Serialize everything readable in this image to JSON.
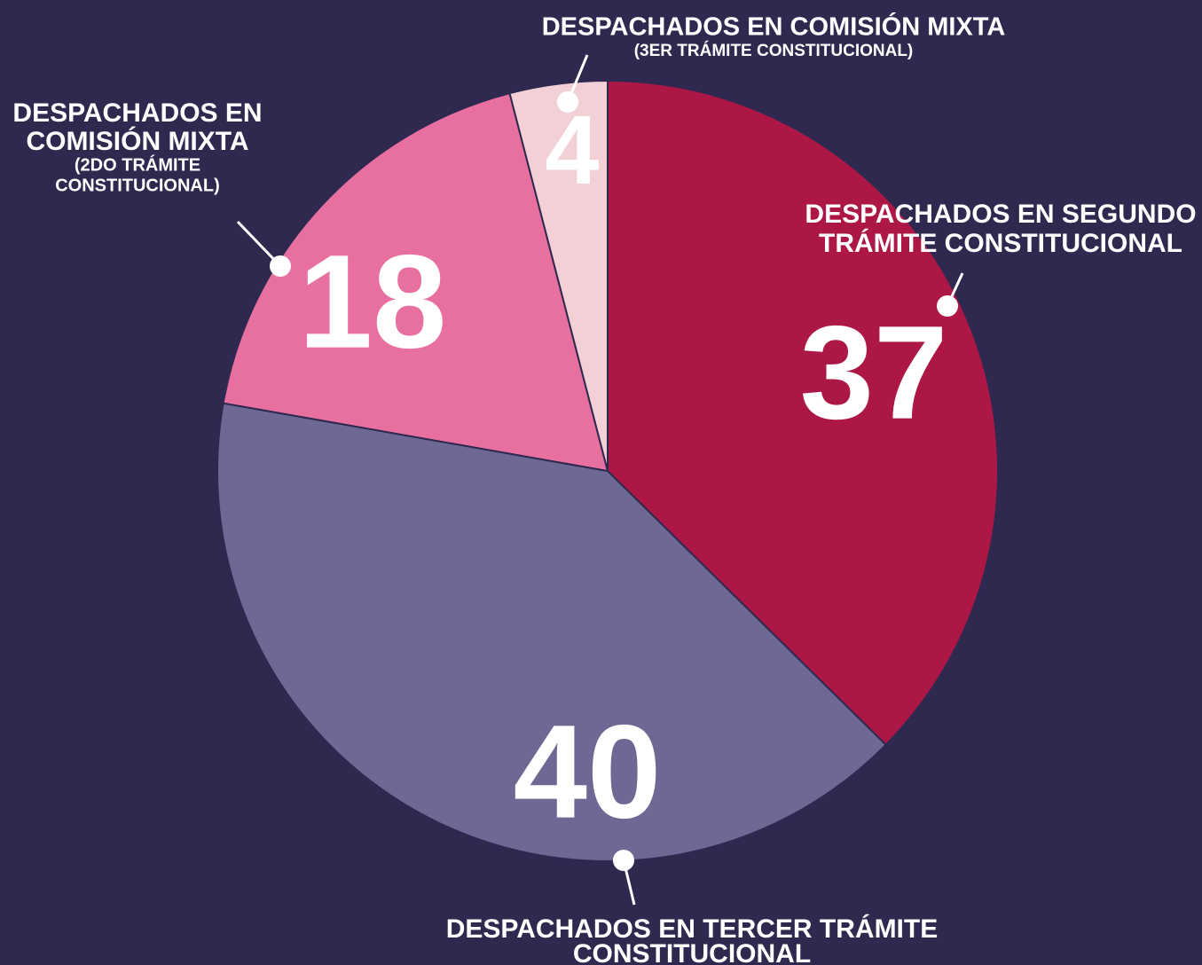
{
  "chart_data": {
    "type": "pie",
    "categories": [
      [
        "DESPACHADOS EN SEGUNDO",
        "TRÁMITE CONSTITUCIONAL"
      ],
      [
        "DESPACHADOS EN TERCER TRÁMITE",
        "CONSTITUCIONAL"
      ],
      [
        "DESPACHADOS EN",
        "COMISIÓN MIXTA"
      ],
      [
        "DESPACHADOS EN COMISIÓN MIXTA"
      ]
    ],
    "category_notes": [
      null,
      null,
      [
        "(2DO TRÁMITE",
        "CONSTITUCIONAL)"
      ],
      [
        "(3ER TRÁMITE CONSTITUCIONAL)"
      ]
    ],
    "values": [
      37,
      40,
      18,
      4
    ],
    "colors": [
      "#ad1746",
      "#6e6894",
      "#e870a0",
      "#f2d0d6"
    ],
    "start_angle": 0,
    "direction": "clockwise"
  }
}
